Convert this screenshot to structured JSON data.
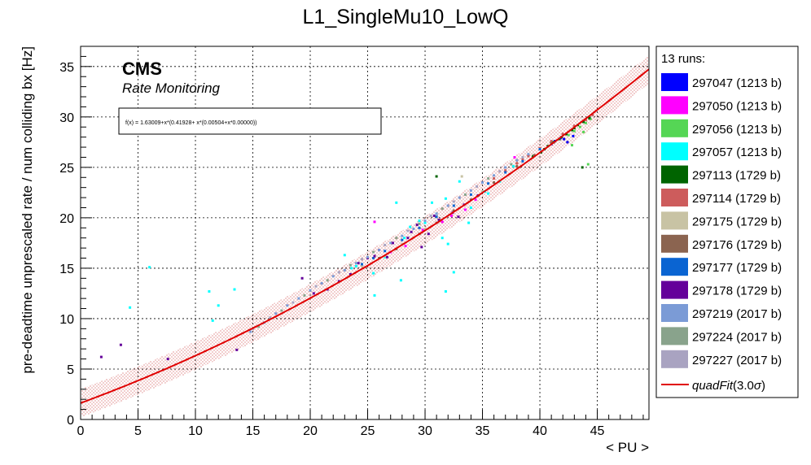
{
  "chart_data": {
    "type": "scatter",
    "title": "L1_SingleMu10_LowQ",
    "xlabel": "< PU >",
    "ylabel": "pre-deadtime unprescaled rate / num colliding bx [Hz]",
    "xlim": [
      0,
      49.5
    ],
    "ylim": [
      0,
      37
    ],
    "xticks": [
      "0",
      "5",
      "10",
      "15",
      "20",
      "25",
      "30",
      "35",
      "40",
      "45"
    ],
    "yticks": [
      "0",
      "5",
      "10",
      "15",
      "20",
      "25",
      "30",
      "35"
    ],
    "grid": true,
    "watermark": {
      "title": "CMS",
      "subtitle": "Rate Monitoring"
    },
    "fit_formula": "f(x) = 1.63009+x*(0.41928+ x*(0.00504+x*0.00000))",
    "fit": {
      "c0": 1.63009,
      "c1": 0.41928,
      "c2": 0.00504,
      "sigma": 3.0,
      "band_halfwidth": 1.4
    },
    "legend": {
      "header": "13 runs:",
      "position": "right",
      "fit_label": "quadFit",
      "fit_suffix": "(3.0",
      "fit_sigma_symbol": "σ",
      "fit_close": ")"
    },
    "series": [
      {
        "name": "297047 (1213 b)",
        "color": "#0000ff",
        "points": [
          [
            41.3,
            27.6
          ],
          [
            41.8,
            27.9
          ],
          [
            42.4,
            27.5
          ],
          [
            42.9,
            28.1
          ],
          [
            41.0,
            27.3
          ],
          [
            42.1,
            27.8
          ]
        ]
      },
      {
        "name": "297050 (1213 b)",
        "color": "#ff00ff",
        "points": [
          [
            25.6,
            19.6
          ],
          [
            27.0,
            16.6
          ],
          [
            31.5,
            19.6
          ],
          [
            32.3,
            20.2
          ],
          [
            33.5,
            20.8
          ],
          [
            37.8,
            26.0
          ],
          [
            29.8,
            18.8
          ],
          [
            28.3,
            17.2
          ],
          [
            34.4,
            21.8
          ]
        ]
      },
      {
        "name": "297056 (1213 b)",
        "color": "#55d655",
        "points": [
          [
            42.5,
            28.2
          ],
          [
            43.0,
            28.6
          ],
          [
            43.5,
            29.0
          ],
          [
            44.0,
            29.4
          ],
          [
            44.4,
            29.8
          ],
          [
            43.8,
            28.5
          ],
          [
            42.8,
            27.2
          ],
          [
            44.2,
            25.3
          ]
        ]
      },
      {
        "name": "297057 (1213 b)",
        "color": "#00ffff",
        "points": [
          [
            4.3,
            11.1
          ],
          [
            6.0,
            15.1
          ],
          [
            11.2,
            12.7
          ],
          [
            11.5,
            9.8
          ],
          [
            12.0,
            11.3
          ],
          [
            13.4,
            12.9
          ],
          [
            23.0,
            16.3
          ],
          [
            24.0,
            15.2
          ],
          [
            25.5,
            14.5
          ],
          [
            25.6,
            12.3
          ],
          [
            27.5,
            21.5
          ],
          [
            28.2,
            18.0
          ],
          [
            30.0,
            19.5
          ],
          [
            31.5,
            18.0
          ],
          [
            31.8,
            12.7
          ],
          [
            32.5,
            14.6
          ],
          [
            33.0,
            23.6
          ],
          [
            34.0,
            21.0
          ],
          [
            35.2,
            22.6
          ],
          [
            36.5,
            23.6
          ],
          [
            37.7,
            25.1
          ],
          [
            31.0,
            20.4
          ],
          [
            28.7,
            19.1
          ],
          [
            23.6,
            15.0
          ],
          [
            32.0,
            17.4
          ],
          [
            26.5,
            16.1
          ],
          [
            33.8,
            19.5
          ],
          [
            35.5,
            22.4
          ],
          [
            30.6,
            21.5
          ],
          [
            31.8,
            21.9
          ],
          [
            27.9,
            13.8
          ],
          [
            29.5,
            19.7
          ]
        ]
      },
      {
        "name": "297113 (1729 b)",
        "color": "#006400",
        "points": [
          [
            31.0,
            24.1
          ],
          [
            39.4,
            26.1
          ],
          [
            40.1,
            26.5
          ],
          [
            40.7,
            27.1
          ],
          [
            41.2,
            27.5
          ],
          [
            41.7,
            27.8
          ],
          [
            42.3,
            28.3
          ],
          [
            42.8,
            28.7
          ],
          [
            43.3,
            29.2
          ],
          [
            43.8,
            29.5
          ],
          [
            44.3,
            29.9
          ],
          [
            40.4,
            26.8
          ],
          [
            41.9,
            28.0
          ],
          [
            43.0,
            28.9
          ],
          [
            43.7,
            25.0
          ]
        ]
      },
      {
        "name": "297114 (1729 b)",
        "color": "#cd5c5c",
        "points": [
          [
            36.0,
            23.9
          ],
          [
            37.0,
            24.7
          ],
          [
            38.0,
            25.4
          ],
          [
            39.0,
            26.1
          ],
          [
            40.0,
            26.9
          ],
          [
            41.0,
            27.6
          ],
          [
            42.0,
            28.3
          ],
          [
            43.0,
            29.1
          ],
          [
            44.0,
            29.7
          ],
          [
            44.6,
            30.2
          ],
          [
            38.5,
            25.8
          ]
        ]
      },
      {
        "name": "297175 (1729 b)",
        "color": "#c8c3a4",
        "points": [
          [
            26.5,
            16.2
          ],
          [
            28.0,
            17.4
          ],
          [
            30.0,
            18.9
          ],
          [
            33.2,
            24.1
          ],
          [
            35.0,
            22.6
          ],
          [
            24.5,
            15.2
          ],
          [
            36.4,
            23.6
          ]
        ]
      },
      {
        "name": "297176 (1729 b)",
        "color": "#8b6450",
        "points": [
          [
            26.0,
            16.0
          ],
          [
            27.5,
            16.9
          ],
          [
            29.5,
            18.4
          ],
          [
            31.0,
            19.5
          ],
          [
            32.5,
            20.7
          ],
          [
            34.0,
            21.8
          ],
          [
            36.0,
            23.5
          ],
          [
            38.0,
            25.1
          ],
          [
            39.5,
            26.2
          ],
          [
            41.0,
            27.4
          ]
        ]
      },
      {
        "name": "297177 (1729 b)",
        "color": "#0a64d2",
        "points": [
          [
            24.5,
            15.4
          ],
          [
            25.5,
            16.0
          ],
          [
            26.5,
            16.7
          ],
          [
            28.0,
            17.8
          ],
          [
            29.5,
            19.0
          ],
          [
            31.0,
            20.1
          ],
          [
            32.5,
            21.2
          ],
          [
            34.0,
            22.3
          ],
          [
            35.5,
            23.4
          ],
          [
            37.0,
            24.5
          ],
          [
            38.5,
            25.6
          ],
          [
            40.0,
            26.8
          ]
        ]
      },
      {
        "name": "297178 (1729 b)",
        "color": "#64009a",
        "points": [
          [
            1.8,
            6.2
          ],
          [
            3.5,
            7.4
          ],
          [
            7.6,
            6.0
          ],
          [
            13.6,
            6.9
          ],
          [
            19.3,
            14.0
          ],
          [
            20.3,
            12.5
          ],
          [
            21.5,
            12.9
          ],
          [
            22.5,
            13.7
          ],
          [
            23.5,
            14.4
          ],
          [
            24.2,
            15.5
          ],
          [
            25.0,
            16.0
          ],
          [
            26.0,
            16.8
          ],
          [
            27.2,
            17.5
          ],
          [
            28.5,
            18.0
          ],
          [
            29.3,
            19.3
          ],
          [
            29.7,
            17.1
          ],
          [
            30.3,
            18.4
          ],
          [
            31.2,
            19.8
          ],
          [
            32.4,
            20.5
          ],
          [
            33.4,
            21.3
          ],
          [
            34.6,
            22.2
          ],
          [
            25.6,
            16.2
          ],
          [
            28.8,
            18.6
          ],
          [
            26.7,
            16.1
          ],
          [
            30.8,
            20.2
          ],
          [
            32.9,
            20.1
          ]
        ]
      },
      {
        "name": "297219 (2017 b)",
        "color": "#7b9bd6",
        "points": [
          [
            14.8,
            8.7
          ],
          [
            16.0,
            9.6
          ],
          [
            17.0,
            10.5
          ],
          [
            18.0,
            11.3
          ],
          [
            19.0,
            12.0
          ],
          [
            20.0,
            12.8
          ],
          [
            21.0,
            13.5
          ],
          [
            22.0,
            14.2
          ],
          [
            23.0,
            14.8
          ],
          [
            24.0,
            15.5
          ],
          [
            25.0,
            16.1
          ],
          [
            26.0,
            16.8
          ],
          [
            27.0,
            17.5
          ],
          [
            28.0,
            18.2
          ],
          [
            29.0,
            18.9
          ],
          [
            30.0,
            19.7
          ],
          [
            31.0,
            20.4
          ],
          [
            32.0,
            21.2
          ],
          [
            33.0,
            22.0
          ],
          [
            34.0,
            22.7
          ],
          [
            35.0,
            23.5
          ],
          [
            36.0,
            24.2
          ],
          [
            37.0,
            25.0
          ],
          [
            38.0,
            25.7
          ],
          [
            39.0,
            26.3
          ]
        ]
      },
      {
        "name": "297224 (2017 b)",
        "color": "#89a38c",
        "points": [
          [
            15.5,
            9.2
          ],
          [
            17.5,
            10.8
          ],
          [
            19.5,
            12.3
          ],
          [
            21.5,
            13.8
          ],
          [
            23.5,
            15.3
          ],
          [
            25.5,
            16.6
          ],
          [
            27.5,
            18.0
          ],
          [
            29.5,
            19.4
          ],
          [
            31.5,
            20.9
          ],
          [
            33.5,
            22.3
          ],
          [
            35.5,
            23.9
          ],
          [
            37.5,
            25.3
          ]
        ]
      },
      {
        "name": "297227 (2017 b)",
        "color": "#a9a3c1",
        "points": [
          [
            15.0,
            9.0
          ],
          [
            16.5,
            10.1
          ],
          [
            18.5,
            11.6
          ],
          [
            20.5,
            13.2
          ],
          [
            22.5,
            14.6
          ],
          [
            24.5,
            15.9
          ],
          [
            26.5,
            17.3
          ],
          [
            28.5,
            18.7
          ],
          [
            30.5,
            20.2
          ],
          [
            32.5,
            21.6
          ],
          [
            34.5,
            23.1
          ],
          [
            36.5,
            24.6
          ],
          [
            38.5,
            26.0
          ]
        ]
      }
    ]
  }
}
